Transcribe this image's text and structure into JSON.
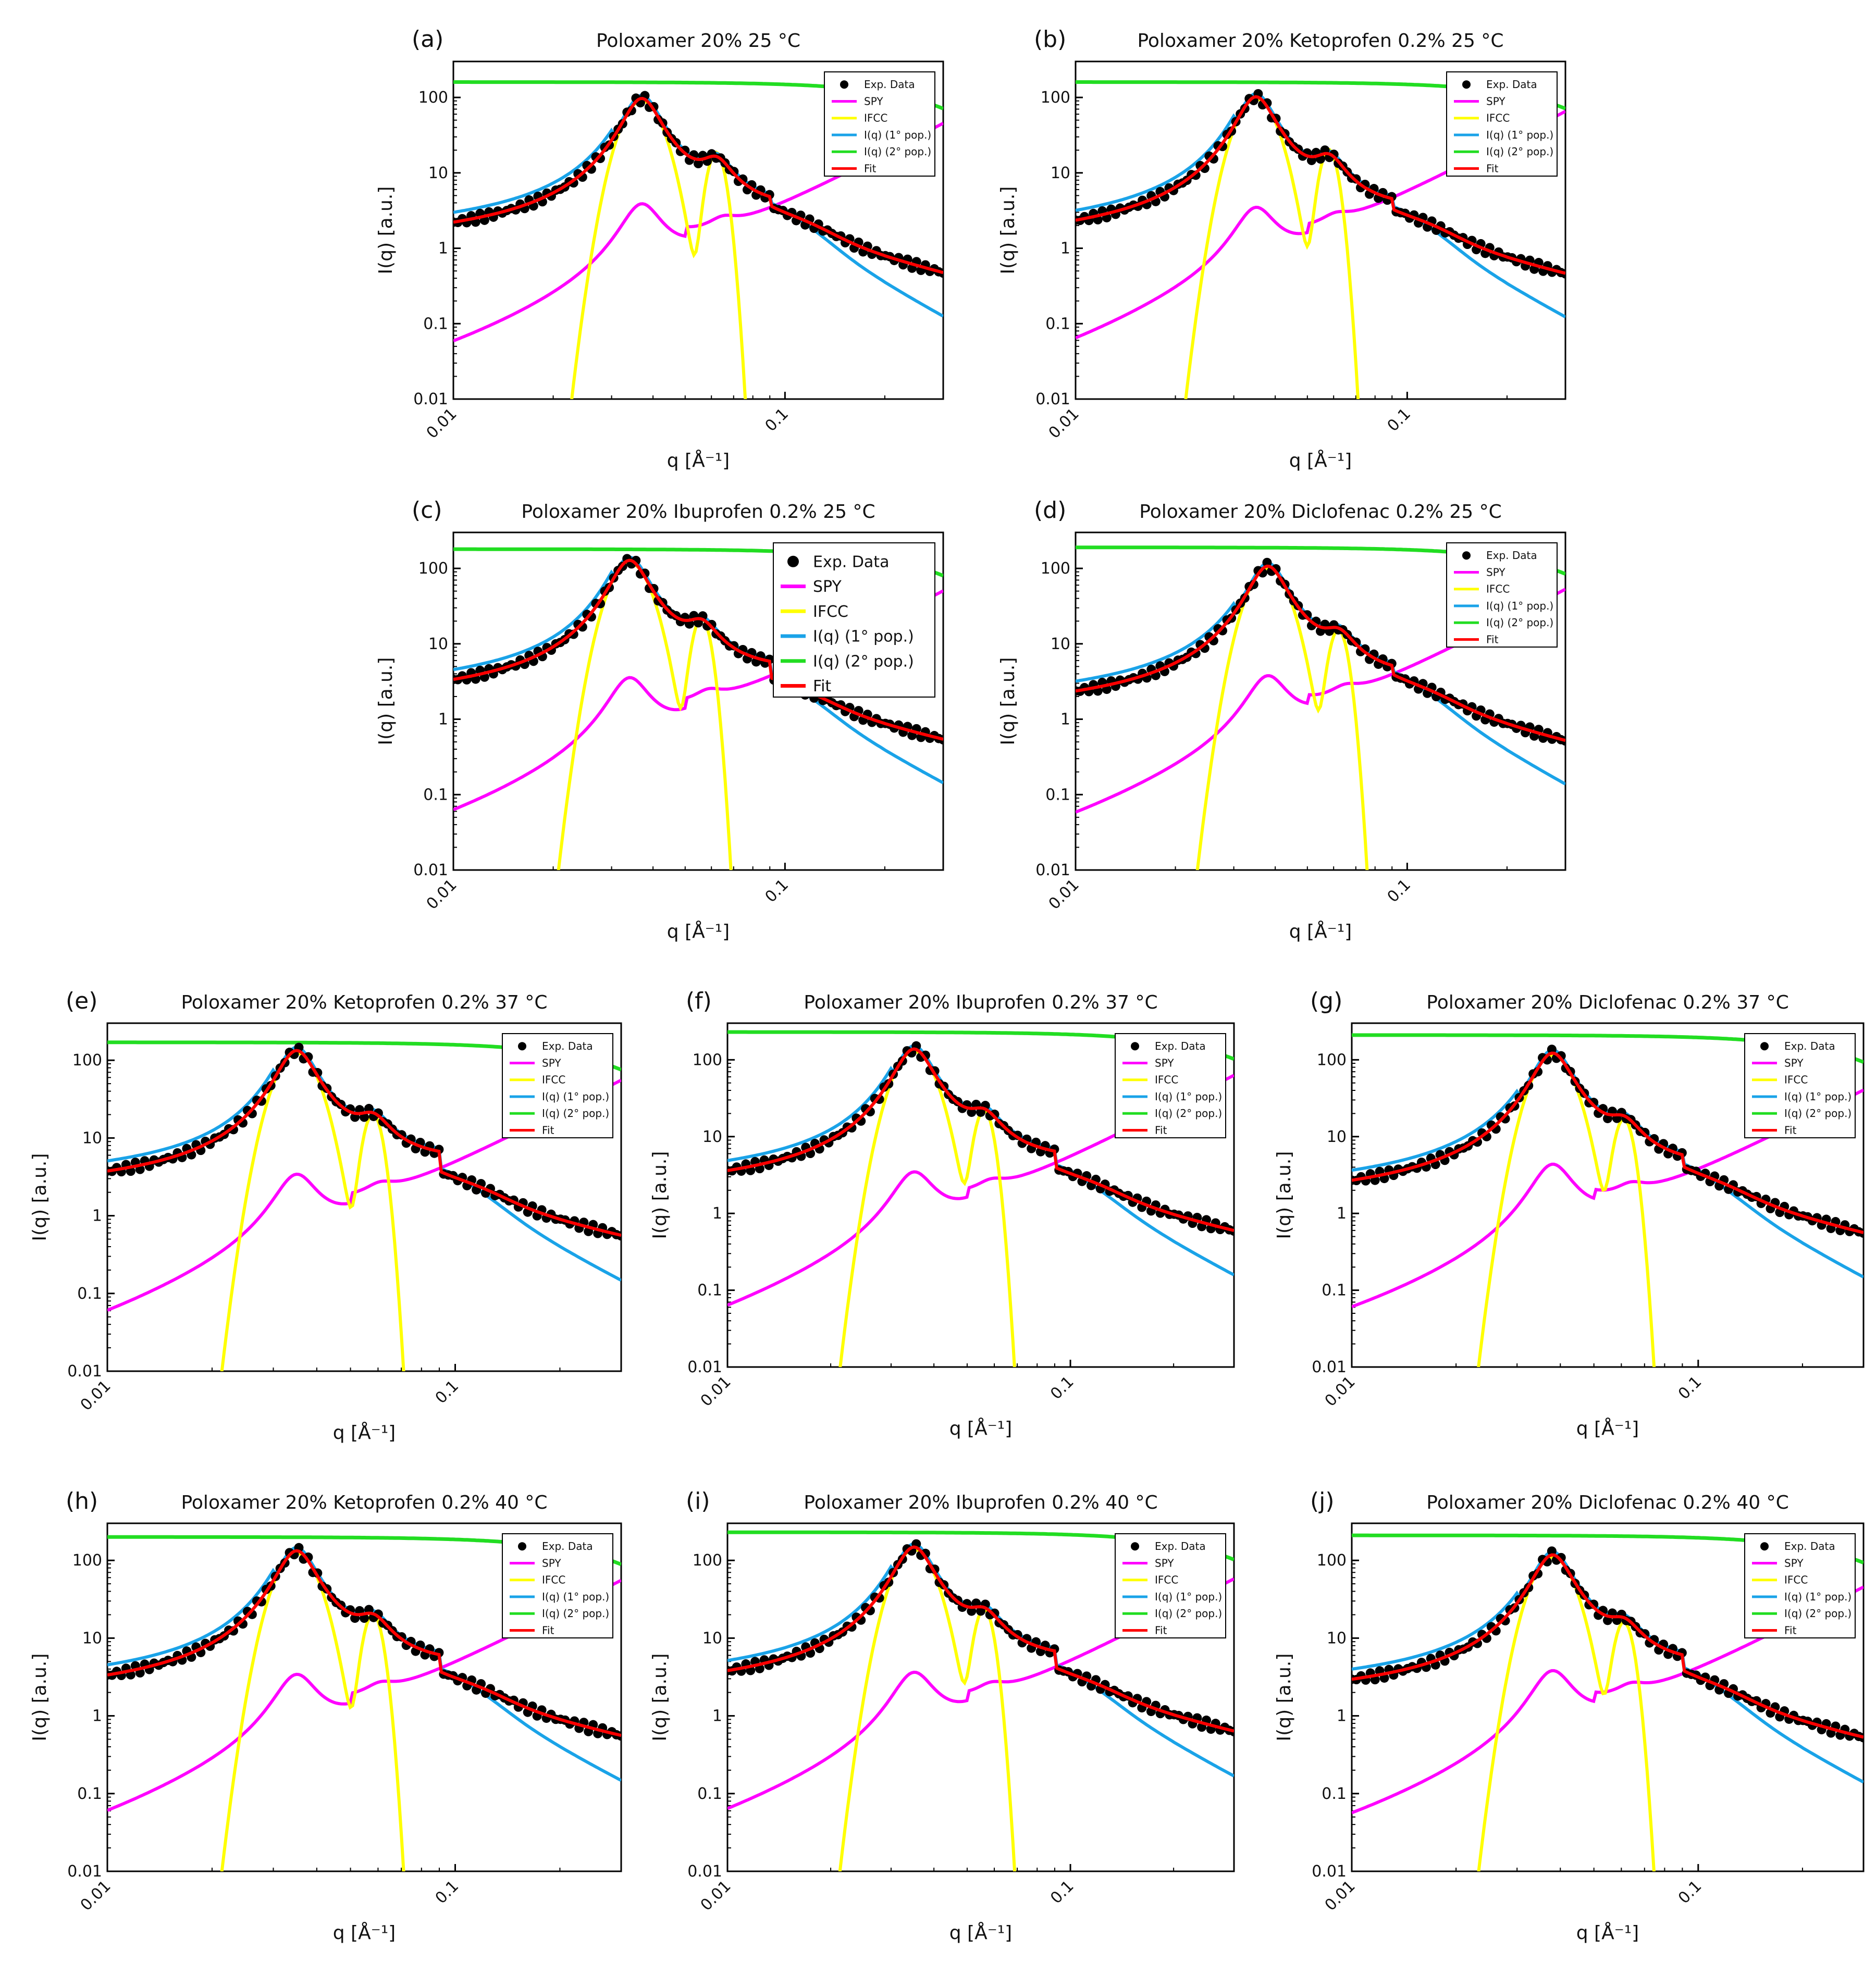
{
  "figure": {
    "x_label": "q [Å⁻¹]",
    "y_label": "I(q) [a.u.]",
    "x_ticks": [
      "0.01",
      "0.1"
    ],
    "y_ticks": [
      "0.01",
      "0.1",
      "1",
      "10",
      "100"
    ]
  },
  "legend_entries": [
    {
      "key": "exp",
      "label": "Exp. Data",
      "color": "#000000"
    },
    {
      "key": "spy",
      "label": "SPY",
      "color": "#ff00ff"
    },
    {
      "key": "ifcc",
      "label": "IFCC",
      "color": "#ffff00"
    },
    {
      "key": "pop1",
      "label": "I(q) (1° pop.)",
      "color": "#1aa3e8"
    },
    {
      "key": "pop2",
      "label": "I(q) (2° pop.)",
      "color": "#22dd22"
    },
    {
      "key": "fit",
      "label": "Fit",
      "color": "#ff0000"
    }
  ],
  "chart_data": [
    {
      "type": "line",
      "id": "a",
      "letter": "(a)",
      "title": "Poloxamer 20% 25 °C",
      "xlabel": "q [Å⁻¹]",
      "ylabel": "I(q) [a.u.]",
      "xscale": "log",
      "yscale": "log",
      "xlim": [
        0.01,
        0.3
      ],
      "ylim": [
        0.01,
        300
      ],
      "legend": "top-right",
      "legend_size": "small",
      "params": {
        "peak1_q": 0.037,
        "peak1_I": 95,
        "dip_q": 0.052,
        "dip_I": 5.5,
        "peak2_q": 0.062,
        "peak2_I": 11,
        "low_I": 1.3,
        "high_I": 0.08,
        "pop2_I": 160,
        "spy_peak": 3.5,
        "spy_low": 0.018
      }
    },
    {
      "type": "line",
      "id": "b",
      "letter": "(b)",
      "title": "Poloxamer 20% Ketoprofen 0.2% 25 °C",
      "xlabel": "q [Å⁻¹]",
      "ylabel": "I(q) [a.u.]",
      "xscale": "log",
      "yscale": "log",
      "xlim": [
        0.01,
        0.3
      ],
      "ylim": [
        0.01,
        300
      ],
      "legend": "top-right",
      "legend_size": "small",
      "params": {
        "peak1_q": 0.035,
        "peak1_I": 100,
        "dip_q": 0.049,
        "dip_I": 6.5,
        "peak2_q": 0.058,
        "peak2_I": 12,
        "low_I": 1.3,
        "high_I": 0.07,
        "pop2_I": 160,
        "spy_peak": 3.0,
        "spy_low": 0.026
      }
    },
    {
      "type": "line",
      "id": "c",
      "letter": "(c)",
      "title": "Poloxamer 20% Ibuprofen 0.2% 25 °C",
      "xlabel": "q [Å⁻¹]",
      "ylabel": "I(q) [a.u.]",
      "xscale": "log",
      "yscale": "log",
      "xlim": [
        0.01,
        0.3
      ],
      "ylim": [
        0.01,
        300
      ],
      "legend": "top-right",
      "legend_size": "large",
      "params": {
        "peak1_q": 0.034,
        "peak1_I": 125,
        "dip_q": 0.047,
        "dip_I": 7.5,
        "peak2_q": 0.056,
        "peak2_I": 13,
        "low_I": 2.0,
        "high_I": 0.07,
        "pop2_I": 180,
        "spy_peak": 3.2,
        "spy_low": 0.02
      }
    },
    {
      "type": "line",
      "id": "d",
      "letter": "(d)",
      "title": "Poloxamer 20% Diclofenac 0.2% 25 °C",
      "xlabel": "q [Å⁻¹]",
      "ylabel": "I(q) [a.u.]",
      "xscale": "log",
      "yscale": "log",
      "xlim": [
        0.01,
        0.3
      ],
      "ylim": [
        0.01,
        300
      ],
      "legend": "top-right",
      "legend_size": "small",
      "params": {
        "peak1_q": 0.038,
        "peak1_I": 105,
        "dip_q": 0.053,
        "dip_I": 6.0,
        "peak2_q": 0.062,
        "peak2_I": 9,
        "low_I": 1.4,
        "high_I": 0.09,
        "pop2_I": 190,
        "spy_peak": 3.3,
        "spy_low": 0.021
      }
    },
    {
      "type": "line",
      "id": "e",
      "letter": "(e)",
      "title": "Poloxamer 20% Ketoprofen 0.2% 37 °C",
      "xlabel": "q [Å⁻¹]",
      "ylabel": "I(q) [a.u.]",
      "xscale": "log",
      "yscale": "log",
      "xlim": [
        0.01,
        0.3
      ],
      "ylim": [
        0.01,
        300
      ],
      "legend": "top-right",
      "legend_size": "small",
      "params": {
        "peak1_q": 0.035,
        "peak1_I": 130,
        "dip_q": 0.05,
        "dip_I": 6.5,
        "peak2_q": 0.058,
        "peak2_I": 12,
        "low_I": 2.4,
        "high_I": 0.06,
        "pop2_I": 170,
        "spy_peak": 3.0,
        "spy_low": 0.022
      }
    },
    {
      "type": "line",
      "id": "f",
      "letter": "(f)",
      "title": "Poloxamer 20% Ibuprofen 0.2% 37 °C",
      "xlabel": "q [Å⁻¹]",
      "ylabel": "I(q) [a.u.]",
      "xscale": "log",
      "yscale": "log",
      "xlim": [
        0.01,
        0.3
      ],
      "ylim": [
        0.01,
        300
      ],
      "legend": "top-right",
      "legend_size": "small",
      "params": {
        "peak1_q": 0.035,
        "peak1_I": 135,
        "dip_q": 0.049,
        "dip_I": 8.0,
        "peak2_q": 0.056,
        "peak2_I": 13,
        "low_I": 2.2,
        "high_I": 0.08,
        "pop2_I": 230,
        "spy_peak": 3.0,
        "spy_low": 0.025
      }
    },
    {
      "type": "line",
      "id": "g",
      "letter": "(g)",
      "title": "Poloxamer 20% Diclofenac 0.2% 37 °C",
      "xlabel": "q [Å⁻¹]",
      "ylabel": "I(q) [a.u.]",
      "xscale": "log",
      "yscale": "log",
      "xlim": [
        0.01,
        0.3
      ],
      "ylim": [
        0.01,
        300
      ],
      "legend": "top-right",
      "legend_size": "small",
      "params": {
        "peak1_q": 0.038,
        "peak1_I": 120,
        "dip_q": 0.053,
        "dip_I": 6.0,
        "peak2_q": 0.061,
        "peak2_I": 10,
        "low_I": 1.6,
        "high_I": 0.07,
        "pop2_I": 210,
        "spy_peak": 4.0,
        "spy_low": 0.016
      }
    },
    {
      "type": "line",
      "id": "h",
      "letter": "(h)",
      "title": "Poloxamer 20% Ketoprofen 0.2% 40 °C",
      "xlabel": "q [Å⁻¹]",
      "ylabel": "I(q) [a.u.]",
      "xscale": "log",
      "yscale": "log",
      "xlim": [
        0.01,
        0.3
      ],
      "ylim": [
        0.01,
        300
      ],
      "legend": "top-right",
      "legend_size": "small",
      "params": {
        "peak1_q": 0.035,
        "peak1_I": 130,
        "dip_q": 0.05,
        "dip_I": 7.5,
        "peak2_q": 0.058,
        "peak2_I": 12,
        "low_I": 2.0,
        "high_I": 0.06,
        "pop2_I": 200,
        "spy_peak": 3.0,
        "spy_low": 0.022
      }
    },
    {
      "type": "line",
      "id": "i",
      "letter": "(i)",
      "title": "Poloxamer 20% Ibuprofen 0.2% 40 °C",
      "xlabel": "q [Å⁻¹]",
      "ylabel": "I(q) [a.u.]",
      "xscale": "log",
      "yscale": "log",
      "xlim": [
        0.01,
        0.3
      ],
      "ylim": [
        0.01,
        300
      ],
      "legend": "top-right",
      "legend_size": "small",
      "params": {
        "peak1_q": 0.035,
        "peak1_I": 145,
        "dip_q": 0.049,
        "dip_I": 8.0,
        "peak2_q": 0.056,
        "peak2_I": 14,
        "low_I": 2.3,
        "high_I": 0.08,
        "pop2_I": 230,
        "spy_peak": 3.2,
        "spy_low": 0.023
      }
    },
    {
      "type": "line",
      "id": "j",
      "letter": "(j)",
      "title": "Poloxamer 20% Diclofenac 0.2% 40 °C",
      "xlabel": "q [Å⁻¹]",
      "ylabel": "I(q) [a.u.]",
      "xscale": "log",
      "yscale": "log",
      "xlim": [
        0.01,
        0.3
      ],
      "ylim": [
        0.01,
        300
      ],
      "legend": "top-right",
      "legend_size": "small",
      "params": {
        "peak1_q": 0.038,
        "peak1_I": 115,
        "dip_q": 0.053,
        "dip_I": 5.5,
        "peak2_q": 0.061,
        "peak2_I": 9.5,
        "low_I": 1.9,
        "high_I": 0.06,
        "pop2_I": 210,
        "spy_peak": 3.4,
        "spy_low": 0.018
      }
    }
  ]
}
